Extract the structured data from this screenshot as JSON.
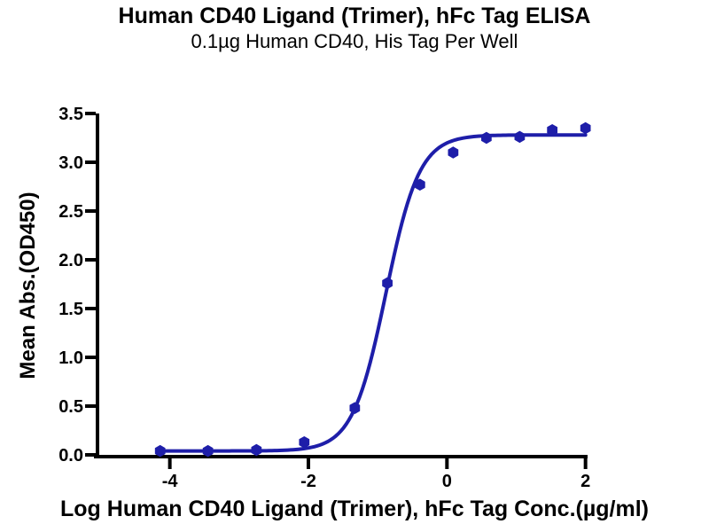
{
  "chart_data": {
    "type": "scatter",
    "title": "Human CD40 Ligand (Trimer), hFc Tag ELISA",
    "subtitle": "0.1µg Human CD40, His Tag Per Well",
    "xlabel": "Log Human CD40 Ligand (Trimer), hFc Tag Conc.(µg/ml)",
    "ylabel": "Mean Abs.(OD450)",
    "xlim": [
      -5.07,
      2.03
    ],
    "ylim": [
      0,
      3.5
    ],
    "x_ticks": [
      -4,
      -2,
      0,
      2
    ],
    "y_ticks": [
      0.0,
      0.5,
      1.0,
      1.5,
      2.0,
      2.5,
      3.0,
      3.5
    ],
    "grid": false,
    "legend": "none",
    "axis_color": "#000000",
    "series": [
      {
        "name": "Human CD40 Ligand (Trimer), hFc Tag",
        "color": "#1e1ea9",
        "marker": "hexagon",
        "points": [
          {
            "x": -4.14,
            "y": 0.04
          },
          {
            "x": -3.45,
            "y": 0.04
          },
          {
            "x": -2.75,
            "y": 0.05
          },
          {
            "x": -2.06,
            "y": 0.13
          },
          {
            "x": -1.33,
            "y": 0.48
          },
          {
            "x": -0.86,
            "y": 1.76
          },
          {
            "x": -0.39,
            "y": 2.77
          },
          {
            "x": 0.09,
            "y": 3.1
          },
          {
            "x": 0.57,
            "y": 3.25
          },
          {
            "x": 1.05,
            "y": 3.26
          },
          {
            "x": 1.52,
            "y": 3.33
          },
          {
            "x": 2.0,
            "y": 3.35
          }
        ],
        "fit_curve": {
          "model": "4PL",
          "bottom": 0.04,
          "top": 3.28,
          "logEC50": -0.88,
          "hill": 1.8,
          "x_start": -4.14,
          "x_end": 2.0
        }
      }
    ]
  }
}
